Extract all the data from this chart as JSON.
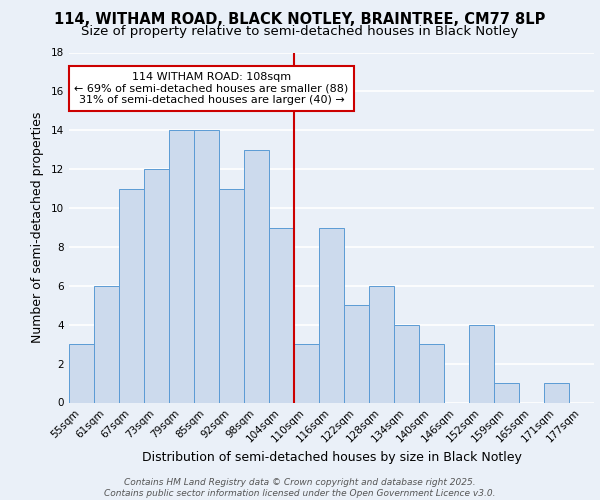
{
  "title1": "114, WITHAM ROAD, BLACK NOTLEY, BRAINTREE, CM77 8LP",
  "title2": "Size of property relative to semi-detached houses in Black Notley",
  "xlabel": "Distribution of semi-detached houses by size in Black Notley",
  "ylabel": "Number of semi-detached properties",
  "categories": [
    "55sqm",
    "61sqm",
    "67sqm",
    "73sqm",
    "79sqm",
    "85sqm",
    "92sqm",
    "98sqm",
    "104sqm",
    "110sqm",
    "116sqm",
    "122sqm",
    "128sqm",
    "134sqm",
    "140sqm",
    "146sqm",
    "152sqm",
    "159sqm",
    "165sqm",
    "171sqm",
    "177sqm"
  ],
  "values": [
    3,
    6,
    11,
    12,
    14,
    14,
    11,
    13,
    9,
    3,
    9,
    5,
    6,
    4,
    3,
    0,
    4,
    1,
    0,
    1,
    0
  ],
  "bar_color": "#ccdaed",
  "bar_edge_color": "#5b9bd5",
  "reference_line_x": 9.0,
  "annotation_title": "114 WITHAM ROAD: 108sqm",
  "annotation_line1": "← 69% of semi-detached houses are smaller (88)",
  "annotation_line2": "31% of semi-detached houses are larger (40) →",
  "annotation_box_color": "#ffffff",
  "annotation_box_edge_color": "#cc0000",
  "ylim": [
    0,
    18
  ],
  "yticks": [
    0,
    2,
    4,
    6,
    8,
    10,
    12,
    14,
    16,
    18
  ],
  "footer1": "Contains HM Land Registry data © Crown copyright and database right 2025.",
  "footer2": "Contains public sector information licensed under the Open Government Licence v3.0.",
  "bg_color": "#eaf0f8",
  "grid_color": "#ffffff",
  "title1_fontsize": 10.5,
  "title2_fontsize": 9.5,
  "axis_label_fontsize": 9,
  "tick_fontsize": 7.5,
  "annotation_fontsize": 8,
  "footer_fontsize": 6.5
}
